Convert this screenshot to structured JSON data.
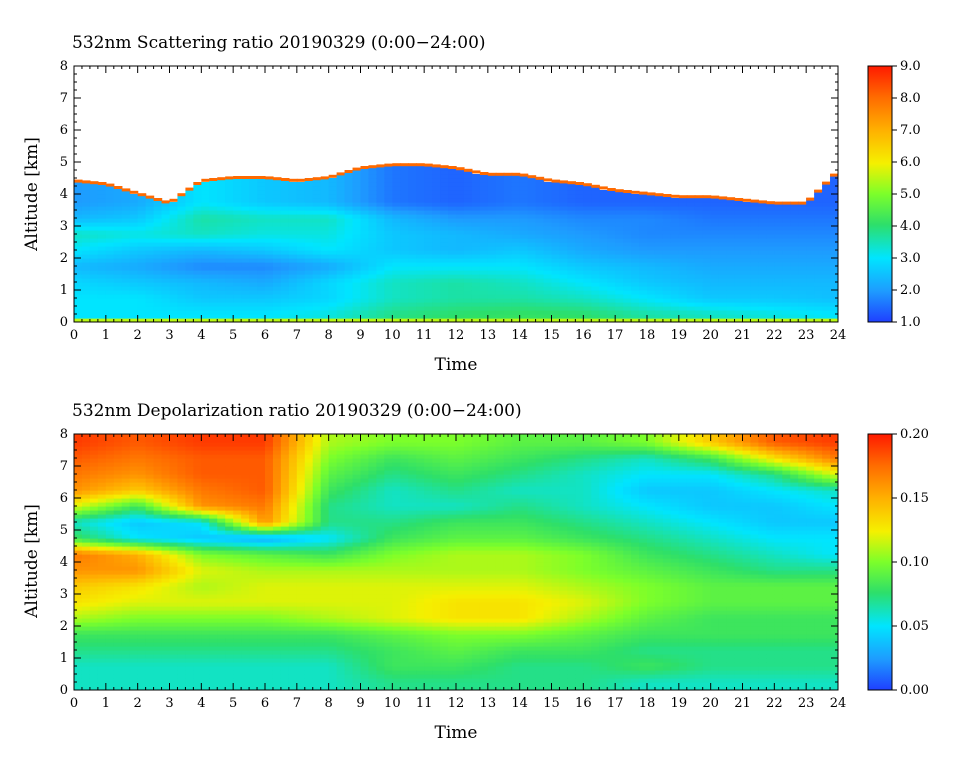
{
  "chart_data": [
    {
      "type": "heatmap",
      "title": "532nm Scattering ratio  20190329 (0:00−24:00)",
      "xlabel": "Time",
      "ylabel": "Altitude [km]",
      "xlim": [
        0,
        24
      ],
      "ylim": [
        0,
        8
      ],
      "x_ticks": [
        "0",
        "1",
        "2",
        "3",
        "4",
        "5",
        "6",
        "7",
        "8",
        "9",
        "10",
        "11",
        "12",
        "13",
        "14",
        "15",
        "16",
        "17",
        "18",
        "19",
        "20",
        "21",
        "22",
        "23",
        "24"
      ],
      "y_ticks": [
        "0",
        "1",
        "2",
        "3",
        "4",
        "5",
        "6",
        "7",
        "8"
      ],
      "colorbar": {
        "range": [
          1.0,
          9.0
        ],
        "tick_labels": [
          "1.0",
          "2.0",
          "3.0",
          "4.0",
          "5.0",
          "6.0",
          "7.0",
          "8.0",
          "9.0"
        ],
        "colormap": [
          "#1f3fff",
          "#1e9bff",
          "#00e5ff",
          "#2ddf6a",
          "#7cff2a",
          "#f5f000",
          "#ffb000",
          "#ff6a00",
          "#ff1a00"
        ]
      },
      "grid": false,
      "blank_color": "#ffffff",
      "cloud_top_altitude_km": {
        "time": [
          0,
          1,
          2,
          3,
          4,
          5,
          6,
          7,
          8,
          9,
          10,
          11,
          12,
          13,
          14,
          15,
          16,
          17,
          18,
          19,
          20,
          21,
          22,
          23,
          24
        ],
        "value": [
          4.4,
          4.3,
          4.0,
          3.7,
          4.4,
          4.5,
          4.5,
          4.4,
          4.5,
          4.8,
          4.9,
          4.9,
          4.8,
          4.6,
          4.6,
          4.4,
          4.3,
          4.1,
          4.0,
          3.9,
          3.9,
          3.8,
          3.7,
          3.7,
          4.7
        ]
      },
      "scattering_ratio": {
        "altitude_km": [
          0.25,
          0.75,
          1.25,
          1.75,
          2.25,
          2.75,
          3.25,
          3.75
        ],
        "time": [
          0,
          2,
          4,
          6,
          8,
          10,
          12,
          14,
          16,
          18,
          20,
          22,
          24
        ],
        "values": [
          [
            3.0,
            3.0,
            3.0,
            3.0,
            3.2,
            3.8,
            4.0,
            4.1,
            4.0,
            3.6,
            3.4,
            3.2,
            3.0
          ],
          [
            3.0,
            3.0,
            2.6,
            2.6,
            2.8,
            3.4,
            3.6,
            3.6,
            3.4,
            3.0,
            2.6,
            2.6,
            2.5
          ],
          [
            2.8,
            2.6,
            2.4,
            2.2,
            2.8,
            3.4,
            3.6,
            3.4,
            3.0,
            2.6,
            2.4,
            2.4,
            2.4
          ],
          [
            2.4,
            2.2,
            1.8,
            1.8,
            2.2,
            3.0,
            3.0,
            3.0,
            2.6,
            2.4,
            2.2,
            2.2,
            2.2
          ],
          [
            3.0,
            2.6,
            2.4,
            2.6,
            3.0,
            2.6,
            2.4,
            2.6,
            2.2,
            2.0,
            2.0,
            2.0,
            2.0
          ],
          [
            3.4,
            3.2,
            3.4,
            3.2,
            3.2,
            2.6,
            2.4,
            2.2,
            2.0,
            1.8,
            1.8,
            1.8,
            1.8
          ],
          [
            2.4,
            2.6,
            3.6,
            3.4,
            3.4,
            2.4,
            2.0,
            2.0,
            1.8,
            1.8,
            1.6,
            1.6,
            1.6
          ],
          [
            2.0,
            2.2,
            3.0,
            2.6,
            2.4,
            1.6,
            1.4,
            1.6,
            1.4,
            1.4,
            1.4,
            1.4,
            1.4
          ]
        ]
      }
    },
    {
      "type": "heatmap",
      "title": "532nm Depolarization ratio  20190329 (0:00−24:00)",
      "xlabel": "Time",
      "ylabel": "Altitude [km]",
      "xlim": [
        0,
        24
      ],
      "ylim": [
        0,
        8
      ],
      "x_ticks": [
        "0",
        "1",
        "2",
        "3",
        "4",
        "5",
        "6",
        "7",
        "8",
        "9",
        "10",
        "11",
        "12",
        "13",
        "14",
        "15",
        "16",
        "17",
        "18",
        "19",
        "20",
        "21",
        "22",
        "23",
        "24"
      ],
      "y_ticks": [
        "0",
        "1",
        "2",
        "3",
        "4",
        "5",
        "6",
        "7",
        "8"
      ],
      "colorbar": {
        "range": [
          0.0,
          0.2
        ],
        "tick_labels": [
          "0.00",
          "0.05",
          "0.10",
          "0.15",
          "0.20"
        ],
        "colormap": [
          "#1f3fff",
          "#1e9bff",
          "#00e5ff",
          "#2ddf6a",
          "#7cff2a",
          "#f5f000",
          "#ffb000",
          "#ff6a00",
          "#ff1a00"
        ]
      },
      "grid": false,
      "depolarization_ratio": {
        "altitude_km": [
          0.25,
          0.75,
          1.25,
          1.75,
          2.25,
          2.75,
          3.25,
          3.75,
          4.25,
          4.75,
          5.25,
          5.75,
          6.25,
          6.75,
          7.25,
          7.75
        ],
        "time": [
          0,
          2,
          4,
          6,
          8,
          10,
          12,
          14,
          16,
          18,
          20,
          22,
          24
        ],
        "values": [
          [
            0.06,
            0.06,
            0.06,
            0.06,
            0.06,
            0.07,
            0.07,
            0.07,
            0.07,
            0.06,
            0.06,
            0.06,
            0.06
          ],
          [
            0.06,
            0.06,
            0.06,
            0.06,
            0.06,
            0.08,
            0.08,
            0.07,
            0.07,
            0.08,
            0.07,
            0.07,
            0.07
          ],
          [
            0.07,
            0.07,
            0.07,
            0.07,
            0.07,
            0.08,
            0.09,
            0.08,
            0.08,
            0.07,
            0.07,
            0.07,
            0.07
          ],
          [
            0.08,
            0.08,
            0.08,
            0.08,
            0.08,
            0.09,
            0.1,
            0.1,
            0.09,
            0.08,
            0.08,
            0.08,
            0.08
          ],
          [
            0.11,
            0.1,
            0.1,
            0.1,
            0.11,
            0.12,
            0.13,
            0.13,
            0.11,
            0.09,
            0.08,
            0.08,
            0.08
          ],
          [
            0.13,
            0.12,
            0.12,
            0.12,
            0.12,
            0.12,
            0.13,
            0.13,
            0.12,
            0.1,
            0.09,
            0.09,
            0.09
          ],
          [
            0.14,
            0.13,
            0.11,
            0.12,
            0.12,
            0.12,
            0.12,
            0.12,
            0.11,
            0.1,
            0.09,
            0.09,
            0.09
          ],
          [
            0.16,
            0.16,
            0.12,
            0.11,
            0.11,
            0.11,
            0.11,
            0.11,
            0.1,
            0.09,
            0.08,
            0.07,
            0.07
          ],
          [
            0.17,
            0.15,
            0.1,
            0.09,
            0.08,
            0.1,
            0.11,
            0.11,
            0.1,
            0.08,
            0.07,
            0.06,
            0.05
          ],
          [
            0.08,
            0.05,
            0.04,
            0.03,
            0.05,
            0.08,
            0.09,
            0.09,
            0.08,
            0.07,
            0.06,
            0.05,
            0.05
          ],
          [
            0.06,
            0.04,
            0.05,
            0.16,
            0.07,
            0.07,
            0.08,
            0.08,
            0.07,
            0.06,
            0.05,
            0.04,
            0.04
          ],
          [
            0.12,
            0.08,
            0.16,
            0.17,
            0.07,
            0.06,
            0.06,
            0.07,
            0.06,
            0.05,
            0.04,
            0.04,
            0.05
          ],
          [
            0.16,
            0.14,
            0.17,
            0.18,
            0.08,
            0.06,
            0.07,
            0.06,
            0.06,
            0.04,
            0.04,
            0.05,
            0.06
          ],
          [
            0.17,
            0.16,
            0.18,
            0.18,
            0.09,
            0.07,
            0.08,
            0.07,
            0.06,
            0.05,
            0.05,
            0.07,
            0.12
          ],
          [
            0.18,
            0.17,
            0.18,
            0.18,
            0.1,
            0.08,
            0.09,
            0.08,
            0.07,
            0.06,
            0.08,
            0.13,
            0.17
          ],
          [
            0.19,
            0.18,
            0.19,
            0.19,
            0.11,
            0.1,
            0.1,
            0.09,
            0.09,
            0.1,
            0.14,
            0.18,
            0.19
          ]
        ]
      }
    }
  ]
}
